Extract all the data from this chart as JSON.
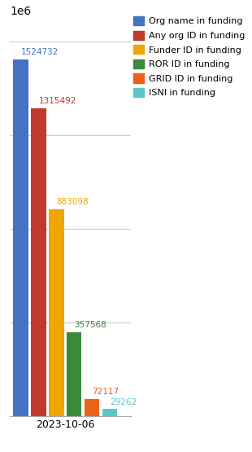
{
  "date_label": "2023-10-06",
  "categories": [
    "Org name in funding",
    "Any org ID in funding",
    "Funder ID in funding",
    "ROR ID in funding",
    "GRID ID in funding",
    "ISNI in funding"
  ],
  "values": [
    1524732,
    1315492,
    883098,
    357568,
    72117,
    29262
  ],
  "colors": [
    "#4472C4",
    "#C0392B",
    "#F0A500",
    "#3A8A3A",
    "#E8621A",
    "#5BC8C8"
  ],
  "value_colors": [
    "#4472C4",
    "#C0392B",
    "#F0A500",
    "#3A8A3A",
    "#E8621A",
    "#5BC8C8"
  ],
  "ylim": [
    0,
    1700000
  ],
  "bar_width": 0.7,
  "bar_spacing": 1.0,
  "figsize": [
    3.1,
    5.55
  ],
  "dpi": 100,
  "label_fontsize": 7.5,
  "tick_fontsize": 9,
  "legend_fontsize": 8
}
